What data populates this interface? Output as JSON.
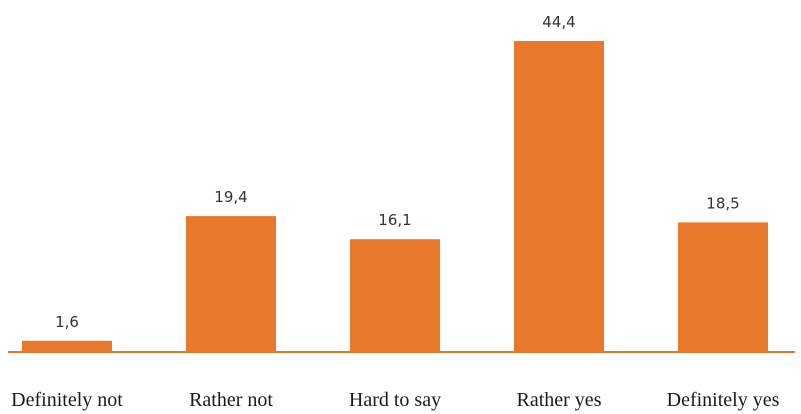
{
  "chart_data": {
    "type": "bar",
    "title": "",
    "xlabel": "",
    "ylabel": "",
    "categories": [
      "Definitely not",
      "Rather not",
      "Hard to say",
      "Rather yes",
      "Definitely yes"
    ],
    "values": [
      1.6,
      19.4,
      16.1,
      44.4,
      18.5
    ],
    "value_labels": [
      "1,6",
      "19,4",
      "16,1",
      "44,4",
      "18,5"
    ],
    "ylim": [
      0,
      44.4
    ],
    "grid": false,
    "legend": "none",
    "colors": {
      "bar": "#e8782a",
      "axis": "#e07a2e"
    }
  }
}
